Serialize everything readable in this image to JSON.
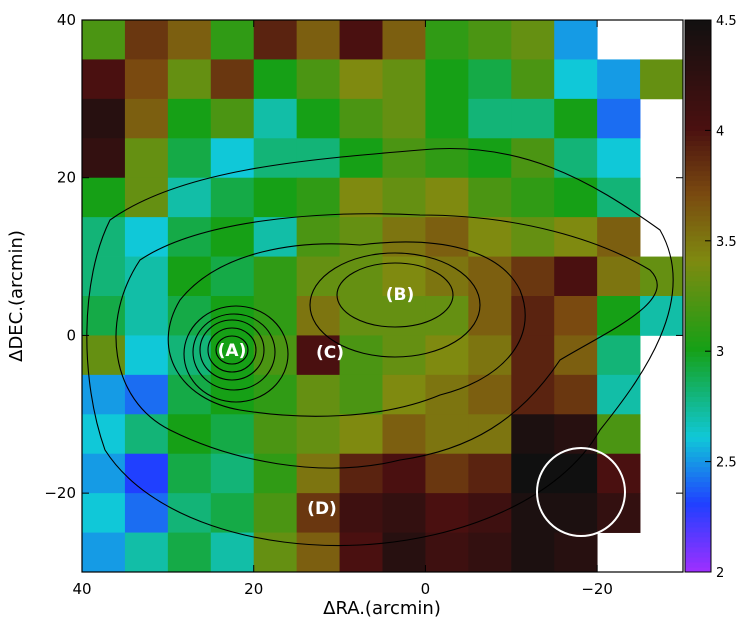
{
  "chart_data": {
    "type": "heatmap",
    "xlabel": "ΔRA.(arcmin)",
    "ylabel": "ΔDEC.(arcmin)",
    "xlim": [
      40,
      -30
    ],
    "ylim": [
      -30,
      40
    ],
    "xbins": [
      40,
      35,
      30,
      25,
      20,
      15,
      10,
      5,
      0,
      -5,
      -10,
      -15,
      -20,
      -25,
      -30
    ],
    "ybins": [
      40,
      35,
      30,
      25,
      20,
      15,
      10,
      5,
      0,
      -5,
      -10,
      -15,
      -20,
      -25,
      -30
    ],
    "xticks": [
      40,
      20,
      0,
      {
        "value": -20,
        "label": "−20"
      }
    ],
    "yticks": [
      40,
      20,
      0,
      {
        "value": -20,
        "label": "−20"
      }
    ],
    "values": [
      [
        3.2,
        3.8,
        3.6,
        3.1,
        3.9,
        3.6,
        4.0,
        3.6,
        3.1,
        3.2,
        3.3,
        2.5,
        null,
        null
      ],
      [
        4.0,
        3.7,
        3.3,
        3.8,
        3.0,
        3.2,
        3.4,
        3.3,
        3.0,
        2.9,
        3.2,
        2.6,
        2.5,
        3.3
      ],
      [
        4.3,
        3.6,
        3.0,
        3.2,
        2.7,
        3.0,
        3.2,
        3.3,
        3.0,
        2.8,
        2.8,
        3.0,
        2.4,
        null
      ],
      [
        4.2,
        3.3,
        2.9,
        2.6,
        2.8,
        2.8,
        3.0,
        3.2,
        3.1,
        3.0,
        3.2,
        2.8,
        2.6,
        null
      ],
      [
        3.0,
        3.3,
        2.7,
        2.9,
        3.0,
        3.1,
        3.4,
        3.3,
        3.4,
        3.2,
        3.1,
        3.0,
        2.8,
        null
      ],
      [
        2.8,
        2.6,
        2.9,
        3.0,
        2.7,
        3.2,
        3.3,
        3.5,
        3.6,
        3.4,
        3.3,
        3.4,
        3.6,
        null
      ],
      [
        2.8,
        2.7,
        3.0,
        2.9,
        3.1,
        3.3,
        3.3,
        3.4,
        3.5,
        3.6,
        3.8,
        4.0,
        3.5,
        3.3
      ],
      [
        2.9,
        2.7,
        2.9,
        3.0,
        3.1,
        3.5,
        3.3,
        3.3,
        3.3,
        3.6,
        3.9,
        3.7,
        3.0,
        2.7
      ],
      [
        3.3,
        2.6,
        2.8,
        3.0,
        3.2,
        4.0,
        3.2,
        3.3,
        3.4,
        3.5,
        3.9,
        3.6,
        2.8,
        null
      ],
      [
        2.5,
        2.4,
        2.9,
        3.0,
        3.1,
        3.3,
        3.2,
        3.4,
        3.5,
        3.6,
        3.9,
        3.8,
        2.7,
        null
      ],
      [
        2.6,
        2.8,
        3.0,
        2.9,
        3.2,
        3.3,
        3.4,
        3.6,
        3.5,
        3.5,
        4.4,
        4.3,
        3.2,
        null
      ],
      [
        2.5,
        2.3,
        2.9,
        2.8,
        3.1,
        3.5,
        3.9,
        4.0,
        3.8,
        3.9,
        4.5,
        4.5,
        4.0,
        null
      ],
      [
        2.6,
        2.4,
        2.8,
        2.9,
        3.2,
        3.8,
        4.1,
        4.2,
        4.0,
        4.1,
        4.4,
        4.4,
        4.2,
        null
      ],
      [
        2.5,
        2.7,
        2.9,
        2.7,
        3.3,
        3.6,
        4.0,
        4.3,
        4.1,
        4.2,
        4.4,
        4.3,
        null,
        null
      ]
    ],
    "clim": [
      2,
      4.5
    ],
    "cticks": [
      2,
      2.5,
      3,
      3.5,
      4,
      4.5
    ],
    "colorscale": [
      [
        2,
        "#9b30ff"
      ],
      [
        2.3,
        "#2040ff"
      ],
      [
        2.6,
        "#10c8d8"
      ],
      [
        3,
        "#16a016"
      ],
      [
        3.4,
        "#7f8a10"
      ],
      [
        3.7,
        "#7a4a10"
      ],
      [
        4,
        "#4a1010"
      ],
      [
        4.5,
        "#101010"
      ]
    ],
    "annotations": [
      "(A)",
      "(B)",
      "(C)",
      "(D)"
    ]
  }
}
